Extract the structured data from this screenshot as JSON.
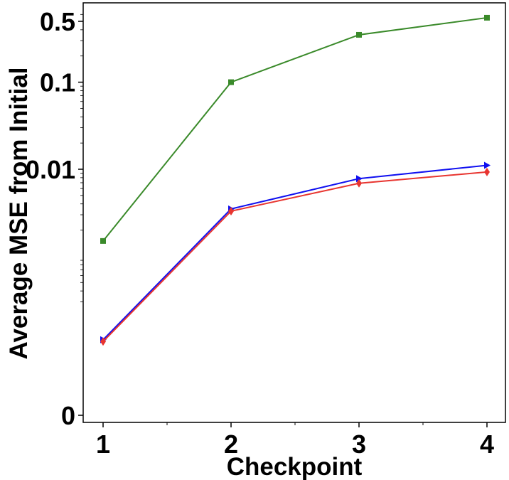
{
  "chart_data": {
    "type": "line",
    "xlabel": "Checkpoint",
    "ylabel": "Average MSE from Initial",
    "y_scale": "log",
    "categories": [
      1,
      2,
      3,
      4
    ],
    "x_tick_labels": [
      "1",
      "2",
      "3",
      "4"
    ],
    "y_ticks": [
      {
        "value": 0.0001,
        "label": "0"
      },
      {
        "value": 0.01,
        "label": "0.01"
      },
      {
        "value": 0.1,
        "label": "0.1"
      },
      {
        "value": 0.5,
        "label": "0.5"
      }
    ],
    "ylim": [
      0.0001,
      0.7
    ],
    "grid": false,
    "legend": "none",
    "series": [
      {
        "color": "#3a8a2a",
        "marker": "square",
        "values": [
          0.0015,
          0.1,
          0.35,
          0.55
        ]
      },
      {
        "color": "#1010f0",
        "marker": "triangle-right",
        "values": [
          0.00011,
          0.0035,
          0.0078,
          0.0111
        ]
      },
      {
        "color": "#e83530",
        "marker": "diamond",
        "values": [
          0.000105,
          0.0033,
          0.0069,
          0.0093
        ]
      }
    ]
  }
}
